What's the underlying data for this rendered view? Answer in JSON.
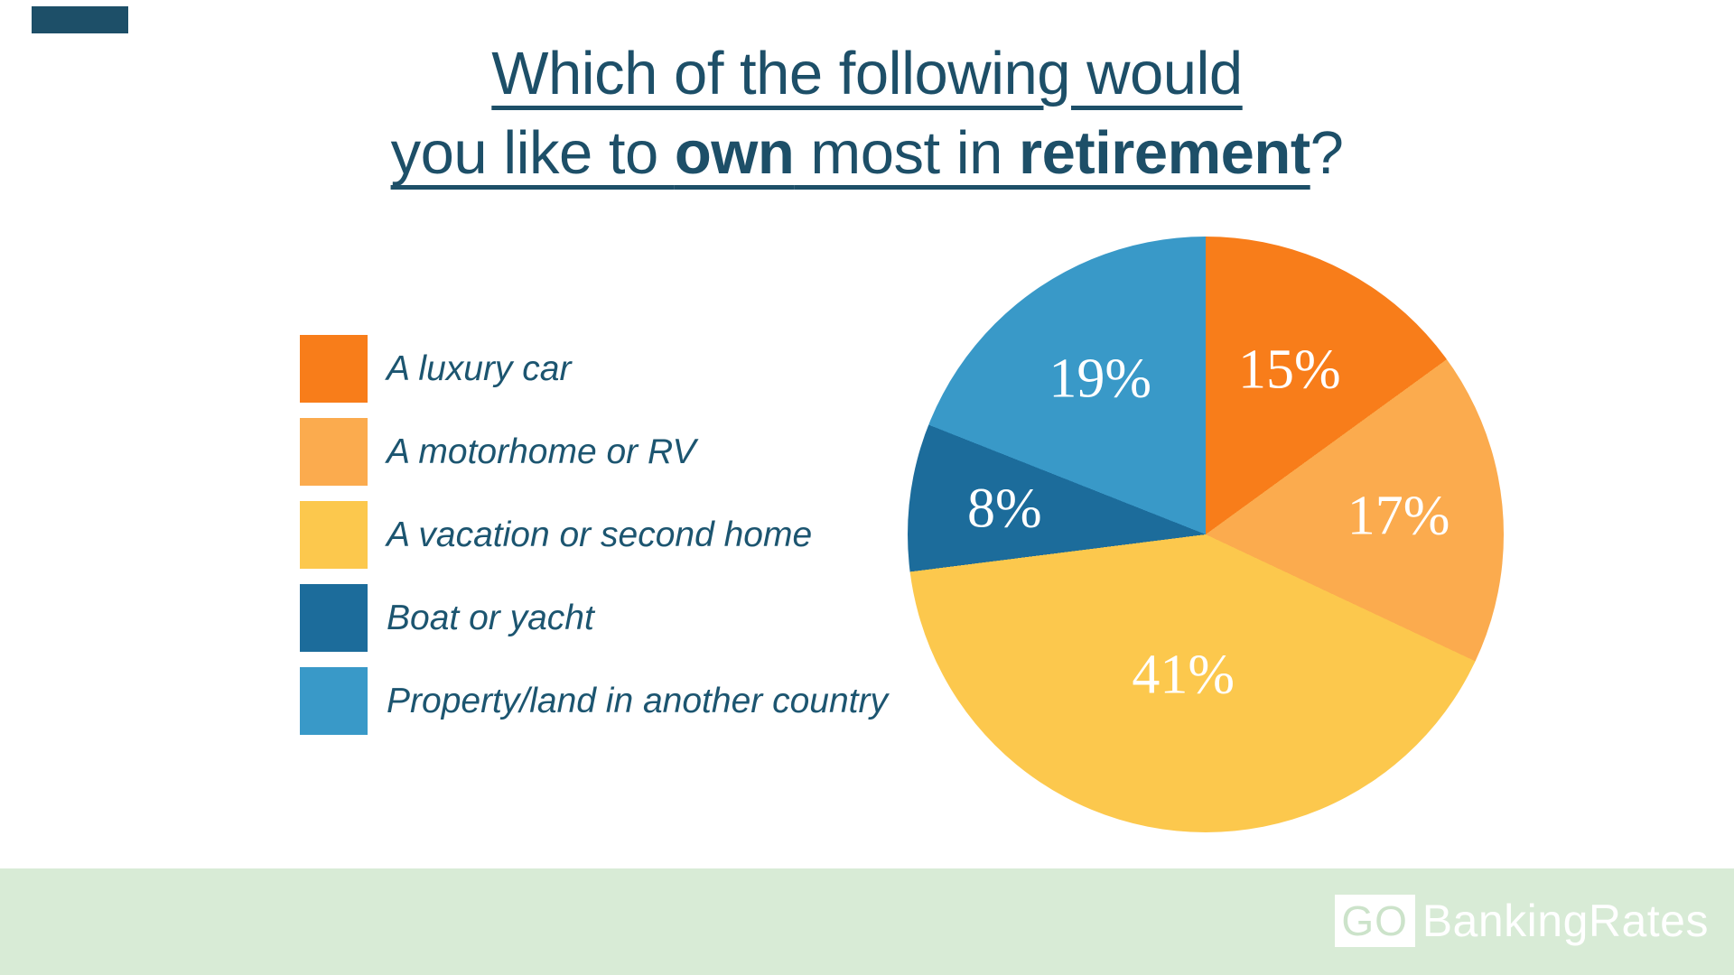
{
  "title": {
    "line1": "Which of the following would",
    "line2_part1": "you like to ",
    "line2_bold1": "own",
    "line2_part2": " most in ",
    "line2_bold2": "retirement",
    "line2_suffix": "?"
  },
  "chart_data": {
    "type": "pie",
    "title": "Which of the following would you like to own most in retirement?",
    "categories": [
      "A luxury car",
      "A motorhome or RV",
      "A vacation or second home",
      "Boat or yacht",
      "Property/land in another country"
    ],
    "values": [
      15,
      17,
      41,
      8,
      19
    ],
    "labels": [
      "15%",
      "17%",
      "41%",
      "8%",
      "19%"
    ],
    "colors": [
      "#F87D1A",
      "#FBAB4E",
      "#FCC84D",
      "#1C6C9B",
      "#3999C8"
    ],
    "start_angle_deg": 0,
    "direction": "clockwise",
    "legend_position": "left",
    "label_color": "#FFFFFF"
  },
  "footer": {
    "logo_go": "GO",
    "logo_rest": "BankingRates"
  },
  "colors": {
    "background": "#FFFFFF",
    "title_text": "#1D4F68",
    "legend_text": "#1C5570",
    "footer_band": "#D8EBD6",
    "logo_go_green": "#CCE3CA",
    "logo_box": "#FFFFFF",
    "corner_mark": "#1D4F68"
  }
}
